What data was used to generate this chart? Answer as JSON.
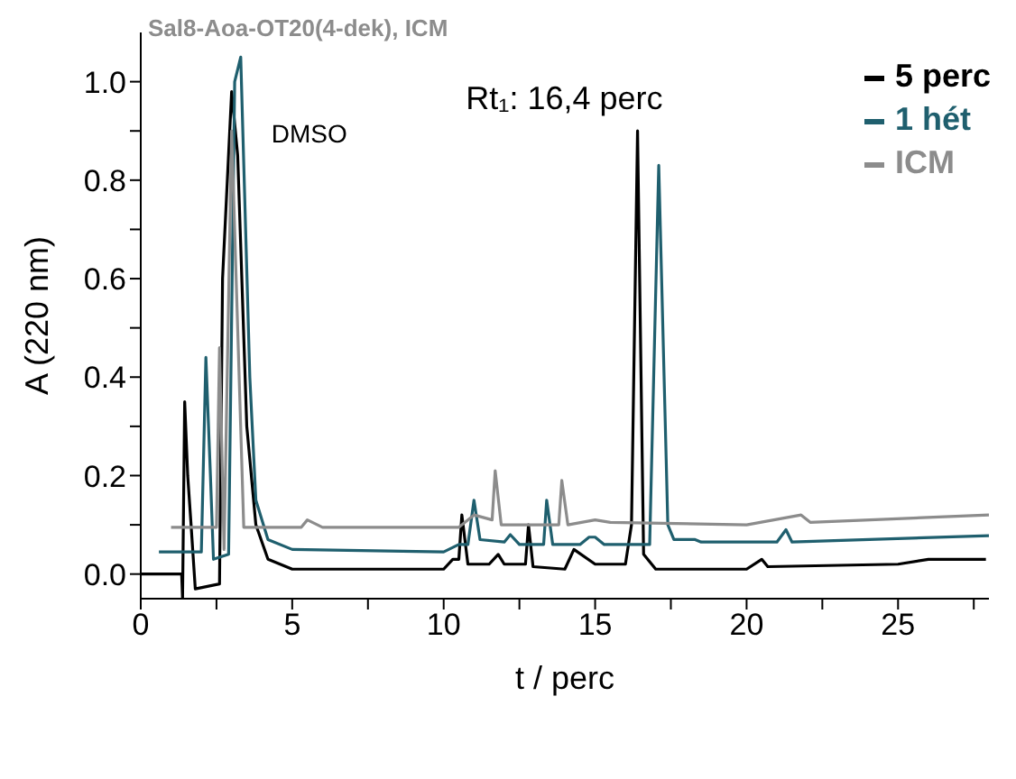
{
  "chart_data": {
    "type": "line",
    "title": "Sal8-Aoa-OT20(4-dek), ICM",
    "xlabel": "t / perc",
    "ylabel": "A (220 nm)",
    "xlim": [
      0,
      28
    ],
    "ylim": [
      -0.05,
      1.1
    ],
    "xticks": [
      0,
      {
        "value": 2.5,
        "label": null
      },
      5,
      {
        "value": 7.5,
        "label": null
      },
      10,
      {
        "value": 12.5,
        "label": null
      },
      15,
      {
        "value": 17.5,
        "label": null
      },
      20,
      {
        "value": 22.5,
        "label": null
      },
      25,
      {
        "value": 27.5,
        "label": null
      }
    ],
    "yticks": [
      {
        "value": 0,
        "label": "0.0"
      },
      {
        "value": 0.1,
        "label": null
      },
      {
        "value": 0.2,
        "label": "0.2"
      },
      {
        "value": 0.3,
        "label": null
      },
      {
        "value": 0.4,
        "label": "0.4"
      },
      {
        "value": 0.5,
        "label": null
      },
      {
        "value": 0.6,
        "label": "0.6"
      },
      {
        "value": 0.7,
        "label": null
      },
      {
        "value": 0.8,
        "label": "0.8"
      },
      {
        "value": 0.9,
        "label": null
      },
      {
        "value": 1.0,
        "label": "1.0"
      }
    ],
    "grid": false,
    "legend": "top right",
    "marker": "none",
    "line_style": "solid",
    "annotations": [
      {
        "text": "DMSO",
        "x": 3.0,
        "y": 0.98
      },
      {
        "text": "Rt₁: 16,4 perc",
        "x": 16.4,
        "y": 0.9
      }
    ],
    "series": [
      {
        "name": "5 perc",
        "color": "#000000",
        "x": [
          0,
          1.35,
          1.38,
          1.45,
          1.55,
          1.65,
          1.8,
          2.6,
          2.7,
          3.0,
          3.2,
          3.5,
          3.8,
          4.2,
          5,
          7,
          10,
          10.3,
          10.5,
          10.6,
          10.8,
          11.5,
          11.8,
          12,
          12.7,
          12.8,
          12.95,
          14,
          14.3,
          15,
          16.0,
          16.2,
          16.4,
          16.6,
          17,
          20,
          20.5,
          20.7,
          25,
          26,
          27.9
        ],
        "values": [
          0,
          0,
          -0.05,
          0.35,
          0.2,
          0.11,
          -0.03,
          -0.02,
          0.6,
          0.98,
          0.85,
          0.3,
          0.1,
          0.03,
          0.01,
          0.01,
          0.01,
          0.03,
          0.03,
          0.12,
          0.02,
          0.02,
          0.04,
          0.02,
          0.02,
          0.1,
          0.015,
          0.01,
          0.05,
          0.02,
          0.02,
          0.1,
          0.9,
          0.04,
          0.01,
          0.01,
          0.03,
          0.015,
          0.02,
          0.03,
          0.03
        ]
      },
      {
        "name": "1 hét",
        "color": "#1f5f6e",
        "x": [
          0.6,
          2.0,
          2.15,
          2.3,
          2.4,
          2.9,
          3.1,
          3.3,
          3.6,
          3.8,
          4.2,
          5,
          10,
          10.5,
          10.8,
          11.0,
          11.2,
          12,
          12.2,
          12.5,
          13.3,
          13.4,
          13.6,
          14.5,
          14.8,
          15,
          15.3,
          16.8,
          17.1,
          17.4,
          17.6,
          18.3,
          18.5,
          21,
          21.3,
          21.5,
          28
        ],
        "values": [
          0.045,
          0.045,
          0.44,
          0.2,
          0.03,
          0.04,
          1.0,
          1.05,
          0.4,
          0.15,
          0.07,
          0.05,
          0.045,
          0.06,
          0.06,
          0.15,
          0.07,
          0.065,
          0.08,
          0.06,
          0.06,
          0.15,
          0.06,
          0.06,
          0.075,
          0.075,
          0.06,
          0.06,
          0.83,
          0.1,
          0.07,
          0.07,
          0.065,
          0.065,
          0.09,
          0.065,
          0.078
        ]
      },
      {
        "name": "ICM",
        "color": "#8c8c8c",
        "x": [
          1.0,
          2.5,
          2.6,
          2.75,
          3.0,
          3.4,
          5.3,
          5.5,
          6,
          10.5,
          11.0,
          11.6,
          11.7,
          11.9,
          13,
          13.8,
          13.9,
          14.1,
          15,
          15.5,
          20,
          21.8,
          22.1,
          28
        ],
        "values": [
          0.095,
          0.095,
          0.46,
          0.05,
          0.9,
          0.095,
          0.095,
          0.11,
          0.095,
          0.095,
          0.12,
          0.11,
          0.21,
          0.1,
          0.1,
          0.1,
          0.19,
          0.1,
          0.11,
          0.105,
          0.1,
          0.12,
          0.105,
          0.12
        ]
      }
    ]
  }
}
